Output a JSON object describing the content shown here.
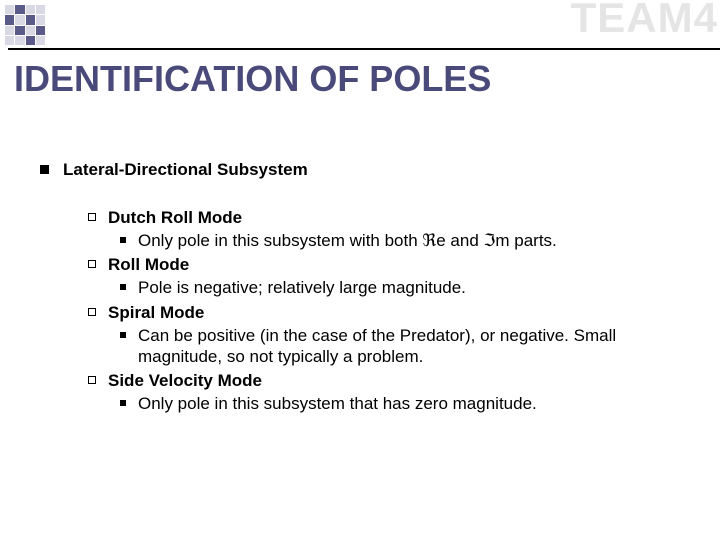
{
  "watermark": {
    "text": "TEAM4",
    "color": "#e5e5e5"
  },
  "title": {
    "text": "IDENTIFICATION OF POLES",
    "color": "#4a4a7a",
    "fontsize": 36
  },
  "body_fontsize": 17,
  "section": {
    "heading": "Lateral-Directional Subsystem",
    "items": [
      {
        "label": "Dutch Roll Mode",
        "points": [
          "Only pole in this subsystem with both ℜe and ℑm parts."
        ]
      },
      {
        "label": "Roll Mode",
        "points": [
          "Pole is negative; relatively large magnitude."
        ]
      },
      {
        "label": "Spiral Mode",
        "points": [
          "Can be positive (in the case of the Predator), or negative. Small magnitude, so not typically a problem."
        ]
      },
      {
        "label": "Side Velocity Mode",
        "points": [
          "Only pole in this subsystem that has zero magnitude."
        ]
      }
    ]
  }
}
